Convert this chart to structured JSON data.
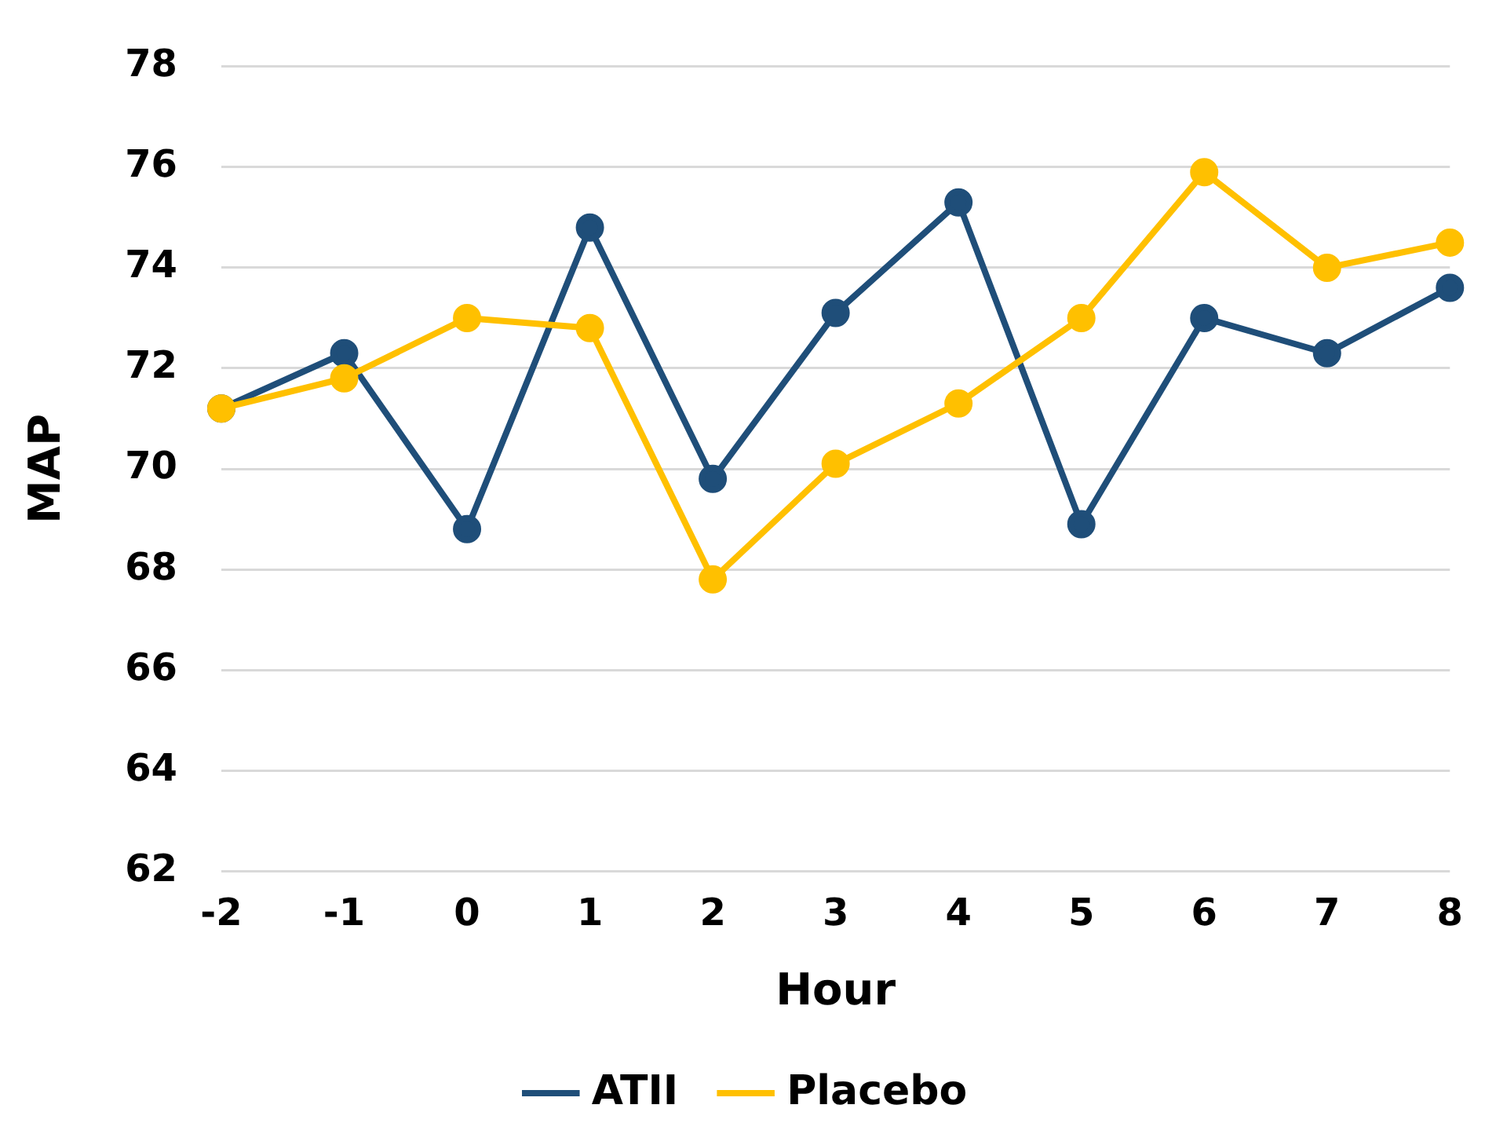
{
  "chart_data": {
    "type": "line",
    "xlabel": "Hour",
    "ylabel": "MAP",
    "categories": [
      "-2",
      "-1",
      "0",
      "1",
      "2",
      "3",
      "4",
      "5",
      "6",
      "7",
      "8"
    ],
    "series": [
      {
        "name": "ATII",
        "color": "#1f4e79",
        "values": [
          71.2,
          72.3,
          68.8,
          74.8,
          69.8,
          73.1,
          75.3,
          68.9,
          73.0,
          72.3,
          73.6
        ]
      },
      {
        "name": "Placebo",
        "color": "#ffc000",
        "values": [
          71.2,
          71.8,
          73.0,
          72.8,
          67.8,
          70.1,
          71.3,
          73.0,
          75.9,
          74.0,
          74.5
        ]
      }
    ],
    "ylim": [
      62,
      78
    ],
    "yticks": [
      62,
      64,
      66,
      68,
      70,
      72,
      74,
      76,
      78
    ],
    "grid": "y",
    "legend": "bottom",
    "marker": "circle",
    "line_style": "solid"
  }
}
